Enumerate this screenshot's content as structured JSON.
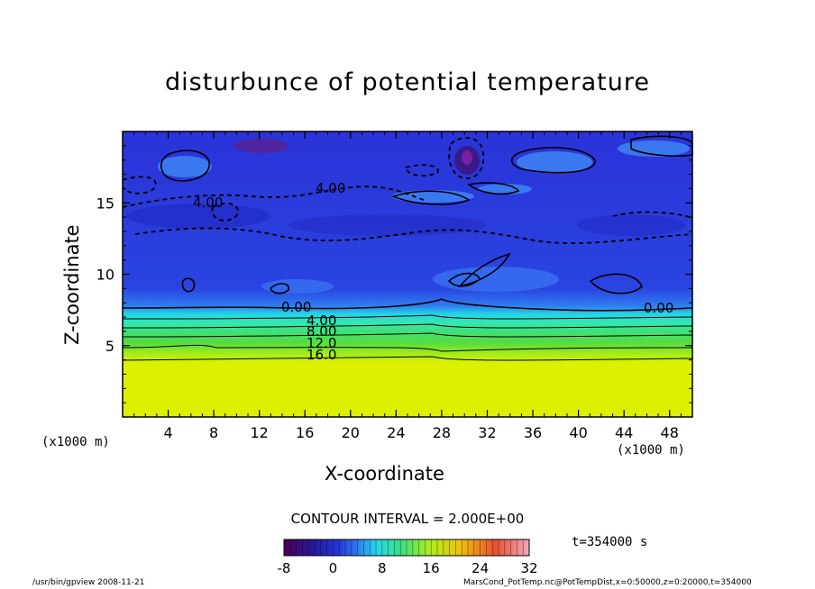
{
  "chart_data": {
    "type": "heatmap",
    "title": "disturbunce of potential temperature",
    "xlabel": "X-coordinate",
    "ylabel": "Z-coordinate",
    "x_unit": "(x1000 m)",
    "z_unit": "(x1000 m)",
    "x_ticks": [
      4,
      8,
      12,
      16,
      20,
      24,
      28,
      32,
      36,
      40,
      44,
      48
    ],
    "y_ticks": [
      5,
      10,
      15
    ],
    "xlim": [
      0,
      50
    ],
    "ylim": [
      0,
      20
    ],
    "contour_labels": [
      "4.00",
      "4.00",
      "0.00",
      "0.00",
      "4.00",
      "8.00",
      "12.0",
      "16.0"
    ],
    "contour_interval_text": "CONTOUR INTERVAL = 2.000E+00",
    "colorbar": {
      "ticks": [
        "-8",
        "0",
        "8",
        "16",
        "24",
        "32"
      ],
      "min": -8,
      "max": 32
    },
    "time_label": "t=354000 s",
    "footer_left": "/usr/bin/gpview   2008-11-21",
    "footer_right": "MarsCond_PotTemp.nc@PotTempDist,x=0:50000,z=0:20000,t=354000"
  }
}
